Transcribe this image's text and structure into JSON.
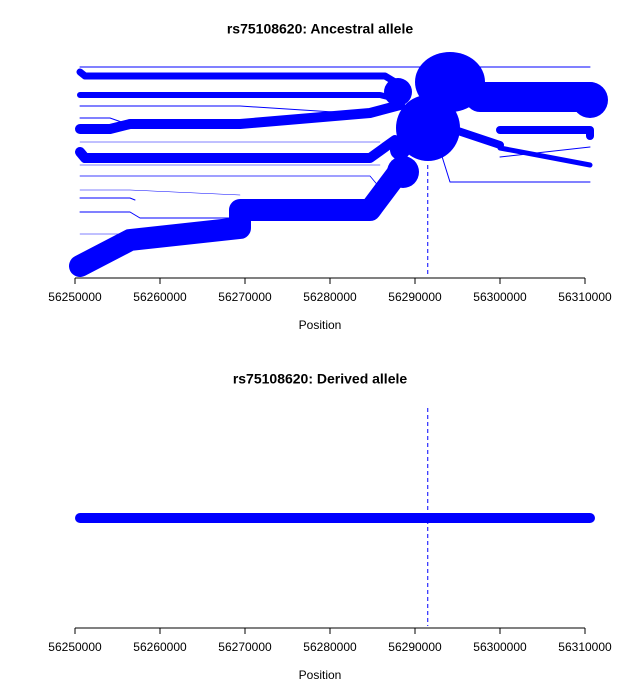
{
  "chart_data": [
    {
      "type": "bifurcation",
      "title": "rs75108620: Ancestral allele",
      "x_label": "Position",
      "xlim": [
        56250000,
        56310000
      ],
      "xticks": [
        56250000,
        56260000,
        56270000,
        56280000,
        56290000,
        56300000,
        56310000
      ],
      "marker_position": 56291500,
      "color": "#0000ff"
    },
    {
      "type": "bifurcation",
      "title": "rs75108620: Derived allele",
      "x_label": "Position",
      "xlim": [
        56250000,
        56310000
      ],
      "xticks": [
        56250000,
        56260000,
        56270000,
        56280000,
        56290000,
        56300000,
        56310000
      ],
      "marker_position": 56291500,
      "color": "#0000ff"
    }
  ]
}
